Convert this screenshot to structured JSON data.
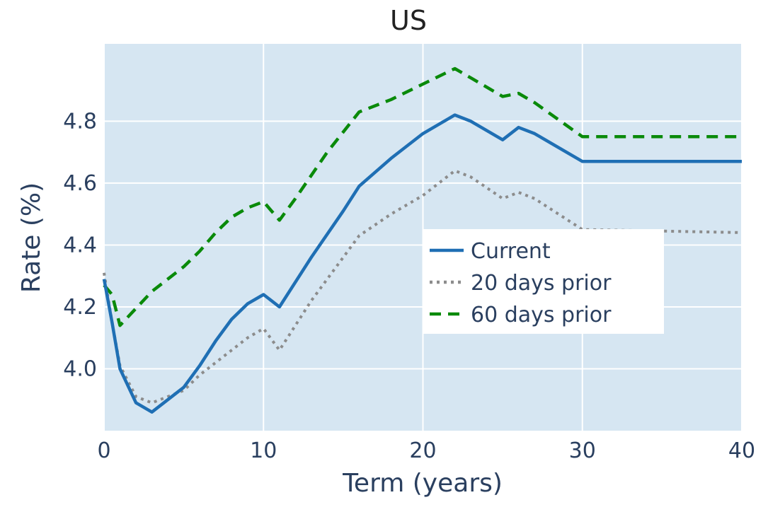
{
  "chart_data": {
    "type": "line",
    "title": "US",
    "xlabel": "Term (years)",
    "ylabel": "Rate (%)",
    "xlim": [
      0,
      40
    ],
    "ylim": [
      3.8,
      5.05
    ],
    "xticks": [
      0,
      10,
      20,
      30,
      40
    ],
    "xtick_labels": [
      "0",
      "10",
      "20",
      "30",
      "40"
    ],
    "yticks": [
      4.0,
      4.2,
      4.4,
      4.6,
      4.8
    ],
    "ytick_labels": [
      "4.0",
      "4.2",
      "4.4",
      "4.6",
      "4.8"
    ],
    "grid": true,
    "legend_position": "right-center",
    "plot_background": "#d6e6f2",
    "series": [
      {
        "name": "Current",
        "style": "solid",
        "color": "#1f6fb4",
        "x": [
          0,
          0.5,
          1,
          2,
          3,
          5,
          6,
          7,
          8,
          9,
          10,
          11,
          13,
          15,
          16,
          18,
          20,
          22,
          23,
          25,
          26,
          27,
          30,
          40
        ],
        "y": [
          4.29,
          4.15,
          4.0,
          3.89,
          3.86,
          3.94,
          4.01,
          4.09,
          4.16,
          4.21,
          4.24,
          4.2,
          4.36,
          4.51,
          4.59,
          4.68,
          4.76,
          4.82,
          4.8,
          4.74,
          4.78,
          4.76,
          4.67,
          4.67
        ]
      },
      {
        "name": "20 days prior",
        "style": "dotted",
        "color": "#8c8c8c",
        "x": [
          0,
          0.5,
          1,
          2,
          3,
          5,
          6,
          7,
          8,
          9,
          10,
          11,
          13,
          15,
          16,
          18,
          20,
          22,
          23,
          25,
          26,
          27,
          30,
          40
        ],
        "y": [
          4.31,
          4.15,
          4.01,
          3.91,
          3.89,
          3.93,
          3.98,
          4.02,
          4.06,
          4.1,
          4.13,
          4.06,
          4.22,
          4.36,
          4.43,
          4.5,
          4.56,
          4.64,
          4.62,
          4.55,
          4.57,
          4.55,
          4.45,
          4.44
        ]
      },
      {
        "name": "60 days prior",
        "style": "dashed",
        "color": "#0a8a0a",
        "x": [
          0,
          0.5,
          1,
          3,
          5,
          6,
          7,
          8,
          9,
          10,
          11,
          12,
          14,
          16,
          18,
          20,
          22,
          23,
          25,
          26,
          27,
          30,
          40
        ],
        "y": [
          4.27,
          4.24,
          4.14,
          4.25,
          4.33,
          4.38,
          4.44,
          4.49,
          4.52,
          4.54,
          4.48,
          4.55,
          4.7,
          4.83,
          4.87,
          4.92,
          4.97,
          4.94,
          4.88,
          4.89,
          4.86,
          4.75,
          4.75
        ]
      }
    ]
  }
}
